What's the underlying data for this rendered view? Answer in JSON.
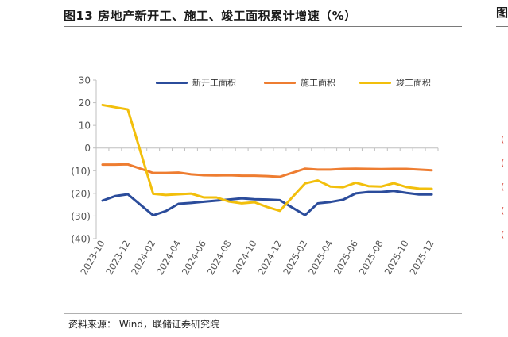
{
  "title": "图13 房地产新开工、施工、竣工面积累计增速（%）",
  "right_panel_title_fragment": "图",
  "source": "资料来源： Wind，联储证券研究院",
  "colors": {
    "new_starts": "#2b4c9b",
    "under_construction": "#ee7d31",
    "completed": "#f2bf0c"
  },
  "chart_data": {
    "type": "line",
    "x": [
      "2023-10",
      "2023-11",
      "2023-12",
      "2024-01",
      "2024-02",
      "2024-03",
      "2024-04",
      "2024-05",
      "2024-06",
      "2024-07",
      "2024-08",
      "2024-09",
      "2024-10",
      "2024-11",
      "2024-12",
      "2025-01",
      "2025-02",
      "2025-03",
      "2025-04",
      "2025-05",
      "2025-06",
      "2025-07",
      "2025-08",
      "2025-09",
      "2025-10",
      "2025-11",
      "2025-12"
    ],
    "tick_labels": [
      "2023-10",
      "2023-12",
      "2024-02",
      "2024-04",
      "2024-06",
      "2024-08",
      "2024-10",
      "2024-12",
      "2025-02",
      "2025-04",
      "2025-06",
      "2025-08",
      "2025-10",
      "2025-12"
    ],
    "y_ticks": [
      30,
      20,
      10,
      0,
      -10,
      -20,
      -30,
      -40
    ],
    "y_tick_labels": [
      "30",
      "20",
      "10",
      "0",
      "(10)",
      "(20)",
      "(30)",
      "(40)"
    ],
    "ylim": [
      -40,
      30
    ],
    "legend_position": "top-right",
    "series": [
      {
        "name": "新开工面积",
        "values": [
          -23.2,
          -21.2,
          -20.4,
          null,
          -29.7,
          -27.8,
          -24.6,
          -24.2,
          -23.7,
          -23.2,
          -22.7,
          -22.2,
          -22.6,
          -22.7,
          -23.0,
          null,
          -29.6,
          -24.4,
          -23.8,
          -22.8,
          -20.0,
          -19.4,
          -19.4,
          -18.9,
          -19.8,
          -20.5,
          -20.5
        ]
      },
      {
        "name": "施工面积",
        "values": [
          -7.3,
          -7.3,
          -7.2,
          null,
          -11.0,
          -11.0,
          -10.8,
          -11.6,
          -12.0,
          -12.1,
          -12.0,
          -12.2,
          -12.2,
          -12.4,
          -12.7,
          null,
          -9.1,
          -9.5,
          -9.5,
          -9.2,
          -9.1,
          -9.2,
          -9.3,
          -9.2,
          -9.2,
          -9.5,
          -9.8
        ]
      },
      {
        "name": "竣工面积",
        "values": [
          19.0,
          18.0,
          17.0,
          null,
          -20.2,
          -20.7,
          -20.4,
          -20.1,
          -21.8,
          -21.8,
          -23.6,
          -24.4,
          -23.9,
          -26.0,
          -27.7,
          null,
          -15.6,
          -14.3,
          -17.0,
          -17.3,
          -15.3,
          -16.8,
          -17.0,
          -15.5,
          -17.2,
          -17.9,
          -18.0
        ]
      }
    ]
  }
}
